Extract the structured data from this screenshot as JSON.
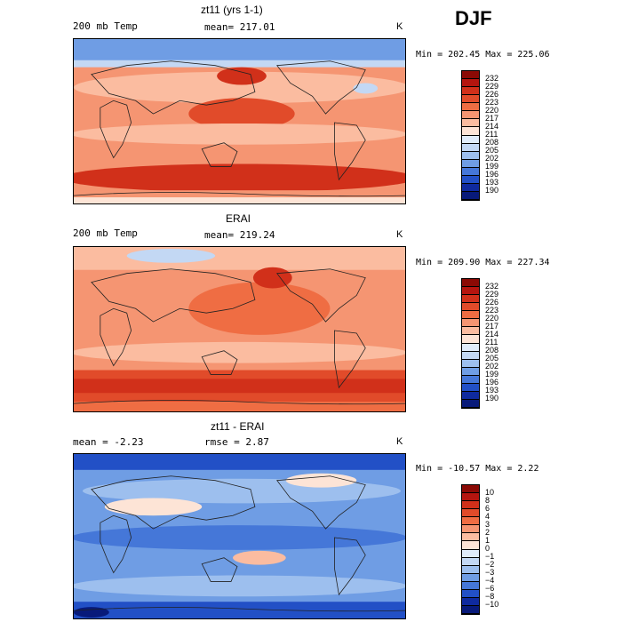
{
  "season": "DJF",
  "panels": [
    {
      "title": "zt11 (yrs 1-1)",
      "left_label": "200 mb Temp",
      "center_label": "mean= 217.01",
      "units": "K",
      "minmax": "Min = 202.45 Max = 225.06",
      "field": "model",
      "colorbar": {
        "ticks": [
          "232",
          "229",
          "226",
          "223",
          "220",
          "217",
          "214",
          "211",
          "208",
          "205",
          "202",
          "199",
          "196",
          "193",
          "190"
        ],
        "colors": [
          "#8b0a05",
          "#b5150f",
          "#d1301a",
          "#e14b2a",
          "#ef6d43",
          "#f59572",
          "#fbbca0",
          "#fde4d6",
          "#e0ecfa",
          "#c3d8f4",
          "#9dbfee",
          "#6f9de4",
          "#4577d8",
          "#2250c6",
          "#0f2a9e",
          "#081a7a"
        ]
      }
    },
    {
      "title": "ERAI",
      "left_label": "200 mb Temp",
      "center_label": "mean= 219.24",
      "units": "K",
      "minmax": "Min = 209.90 Max = 227.34",
      "field": "obs",
      "colorbar": {
        "ticks": [
          "232",
          "229",
          "226",
          "223",
          "220",
          "217",
          "214",
          "211",
          "208",
          "205",
          "202",
          "199",
          "196",
          "193",
          "190"
        ],
        "colors": [
          "#8b0a05",
          "#b5150f",
          "#d1301a",
          "#e14b2a",
          "#ef6d43",
          "#f59572",
          "#fbbca0",
          "#fde4d6",
          "#e0ecfa",
          "#c3d8f4",
          "#9dbfee",
          "#6f9de4",
          "#4577d8",
          "#2250c6",
          "#0f2a9e",
          "#081a7a"
        ]
      }
    },
    {
      "title": "zt11 - ERAI",
      "left_label": "mean =  -2.23",
      "center_label": "rmse =   2.87",
      "units": "K",
      "minmax": "Min = -10.57 Max =   2.22",
      "field": "diff",
      "colorbar": {
        "ticks": [
          "10",
          "8",
          "6",
          "4",
          "3",
          "2",
          "1",
          "0",
          "−1",
          "−2",
          "−3",
          "−4",
          "−6",
          "−8",
          "−10"
        ],
        "colors": [
          "#8b0a05",
          "#b5150f",
          "#d1301a",
          "#e14b2a",
          "#ef6d43",
          "#f59572",
          "#fbbca0",
          "#fde4d6",
          "#e0ecfa",
          "#c3d8f4",
          "#9dbfee",
          "#6f9de4",
          "#4577d8",
          "#2250c6",
          "#0f2a9e",
          "#081a7a"
        ]
      }
    }
  ]
}
